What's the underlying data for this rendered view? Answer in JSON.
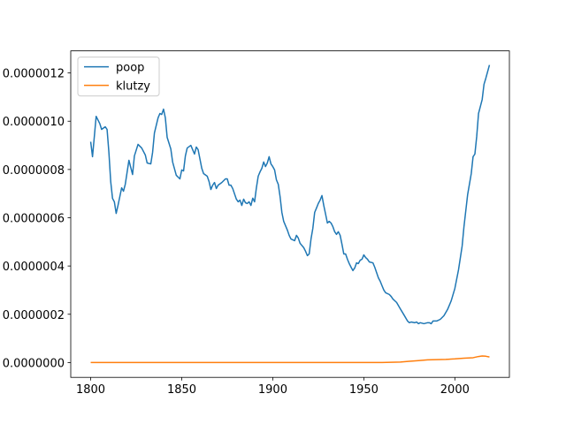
{
  "chart_data": {
    "type": "line",
    "series": [
      {
        "name": "poop",
        "color": "#1f77b4",
        "x": [
          1800,
          1801,
          1803,
          1805,
          1806,
          1808,
          1809,
          1810,
          1811,
          1812,
          1813,
          1814,
          1815,
          1817,
          1818,
          1819,
          1821,
          1823,
          1824,
          1826,
          1828,
          1830,
          1831,
          1833,
          1834,
          1835,
          1837,
          1838,
          1839,
          1840,
          1841,
          1842,
          1844,
          1845,
          1847,
          1849,
          1850,
          1851,
          1852,
          1853,
          1855,
          1857,
          1858,
          1859,
          1861,
          1862,
          1864,
          1865,
          1866,
          1867,
          1868,
          1869,
          1870,
          1872,
          1874,
          1875,
          1876,
          1877,
          1878,
          1880,
          1881,
          1882,
          1883,
          1884,
          1885,
          1886,
          1887,
          1888,
          1889,
          1890,
          1891,
          1892,
          1893,
          1894,
          1895,
          1896,
          1897,
          1898,
          1899,
          1900,
          1901,
          1902,
          1903,
          1904,
          1905,
          1906,
          1908,
          1909,
          1910,
          1912,
          1913,
          1914,
          1915,
          1917,
          1918,
          1919,
          1920,
          1921,
          1922,
          1923,
          1924,
          1925,
          1926,
          1927,
          1928,
          1929,
          1930,
          1931,
          1932,
          1933,
          1934,
          1935,
          1936,
          1937,
          1938,
          1939,
          1940,
          1941,
          1942,
          1943,
          1944,
          1945,
          1946,
          1947,
          1948,
          1949,
          1950,
          1951,
          1952,
          1953,
          1955,
          1956,
          1957,
          1958,
          1959,
          1960,
          1961,
          1962,
          1964,
          1965,
          1966,
          1968,
          1970,
          1972,
          1974,
          1975,
          1976,
          1978,
          1979,
          1980,
          1981,
          1983,
          1985,
          1986,
          1987,
          1988,
          1990,
          1992,
          1994,
          1996,
          1998,
          2000,
          2002,
          2004,
          2005,
          2006,
          2007,
          2009,
          2010,
          2011,
          2012,
          2013,
          2015,
          2016,
          2017,
          2019
        ],
        "values": [
          9.15e-07,
          8.53e-07,
          1.02e-06,
          9.9e-07,
          9.66e-07,
          9.77e-07,
          9.66e-07,
          8.71e-07,
          7.5e-07,
          6.8e-07,
          6.66e-07,
          6.18e-07,
          6.51e-07,
          7.24e-07,
          7.1e-07,
          7.39e-07,
          8.38e-07,
          7.79e-07,
          8.56e-07,
          9.04e-07,
          8.89e-07,
          8.6e-07,
          8.27e-07,
          8.23e-07,
          8.71e-07,
          9.51e-07,
          1.014e-06,
          1.032e-06,
          1.028e-06,
          1.05e-06,
          1.014e-06,
          9.33e-07,
          8.85e-07,
          8.31e-07,
          7.76e-07,
          7.61e-07,
          7.98e-07,
          7.94e-07,
          8.56e-07,
          8.89e-07,
          9e-07,
          8.64e-07,
          8.93e-07,
          8.82e-07,
          8.05e-07,
          7.83e-07,
          7.72e-07,
          7.5e-07,
          7.17e-07,
          7.35e-07,
          7.46e-07,
          7.21e-07,
          7.35e-07,
          7.46e-07,
          7.61e-07,
          7.61e-07,
          7.35e-07,
          7.35e-07,
          7.21e-07,
          6.77e-07,
          6.66e-07,
          6.73e-07,
          6.51e-07,
          6.77e-07,
          6.62e-07,
          6.59e-07,
          6.66e-07,
          6.51e-07,
          6.81e-07,
          6.66e-07,
          7.24e-07,
          7.72e-07,
          7.9e-07,
          8.05e-07,
          8.31e-07,
          8.12e-07,
          8.27e-07,
          8.53e-07,
          8.23e-07,
          8.12e-07,
          7.98e-07,
          7.57e-07,
          7.39e-07,
          6.88e-07,
          6.22e-07,
          5.85e-07,
          5.49e-07,
          5.27e-07,
          5.12e-07,
          5.05e-07,
          5.27e-07,
          5.16e-07,
          4.94e-07,
          4.76e-07,
          4.61e-07,
          4.43e-07,
          4.5e-07,
          5.12e-07,
          5.56e-07,
          6.22e-07,
          6.4e-07,
          6.59e-07,
          6.73e-07,
          6.92e-07,
          6.51e-07,
          6.15e-07,
          5.78e-07,
          5.85e-07,
          5.78e-07,
          5.63e-07,
          5.42e-07,
          5.31e-07,
          5.42e-07,
          5.27e-07,
          4.9e-07,
          4.5e-07,
          4.5e-07,
          4.28e-07,
          4.1e-07,
          3.95e-07,
          3.81e-07,
          3.92e-07,
          4.13e-07,
          4.1e-07,
          4.24e-07,
          4.28e-07,
          4.46e-07,
          4.35e-07,
          4.28e-07,
          4.17e-07,
          4.13e-07,
          3.95e-07,
          3.73e-07,
          3.51e-07,
          3.37e-07,
          3.18e-07,
          3e-07,
          2.89e-07,
          2.82e-07,
          2.74e-07,
          2.63e-07,
          2.49e-07,
          2.23e-07,
          1.98e-07,
          1.72e-07,
          1.65e-07,
          1.68e-07,
          1.65e-07,
          1.68e-07,
          1.61e-07,
          1.65e-07,
          1.61e-07,
          1.65e-07,
          1.65e-07,
          1.61e-07,
          1.72e-07,
          1.72e-07,
          1.79e-07,
          1.94e-07,
          2.2e-07,
          2.56e-07,
          3.07e-07,
          3.84e-07,
          4.83e-07,
          5.63e-07,
          6.29e-07,
          6.95e-07,
          7.83e-07,
          8.53e-07,
          8.64e-07,
          9.37e-07,
          1.032e-06,
          1.09e-06,
          1.153e-06,
          1.178e-06,
          1.233e-06
        ]
      },
      {
        "name": "klutzy",
        "color": "#ff7f0e",
        "x": [
          1800,
          1960,
          1970,
          1975,
          1980,
          1985,
          1990,
          1995,
          2000,
          2005,
          2010,
          2013,
          2015,
          2017,
          2019
        ],
        "values": [
          0,
          0,
          2e-09,
          5e-09,
          8e-09,
          1.1e-08,
          1.2e-08,
          1.3e-08,
          1.5e-08,
          1.8e-08,
          2e-08,
          2.5e-08,
          2.7e-08,
          2.6e-08,
          2.3e-08
        ]
      }
    ],
    "xlim": [
      1789.05,
      2029.95
    ],
    "xticks": [
      1800,
      1850,
      1900,
      1950,
      2000
    ],
    "ylim": [
      -6.15e-08,
      1.2915e-06
    ],
    "yticks": [
      {
        "value": 0,
        "label": "0.0000000"
      },
      {
        "value": 2e-07,
        "label": "0.0000002"
      },
      {
        "value": 4e-07,
        "label": "0.0000004"
      },
      {
        "value": 6e-07,
        "label": "0.0000006"
      },
      {
        "value": 8e-07,
        "label": "0.0000008"
      },
      {
        "value": 1e-06,
        "label": "0.0000010"
      },
      {
        "value": 1.2e-06,
        "label": "0.0000012"
      }
    ],
    "legend": "upper left"
  }
}
